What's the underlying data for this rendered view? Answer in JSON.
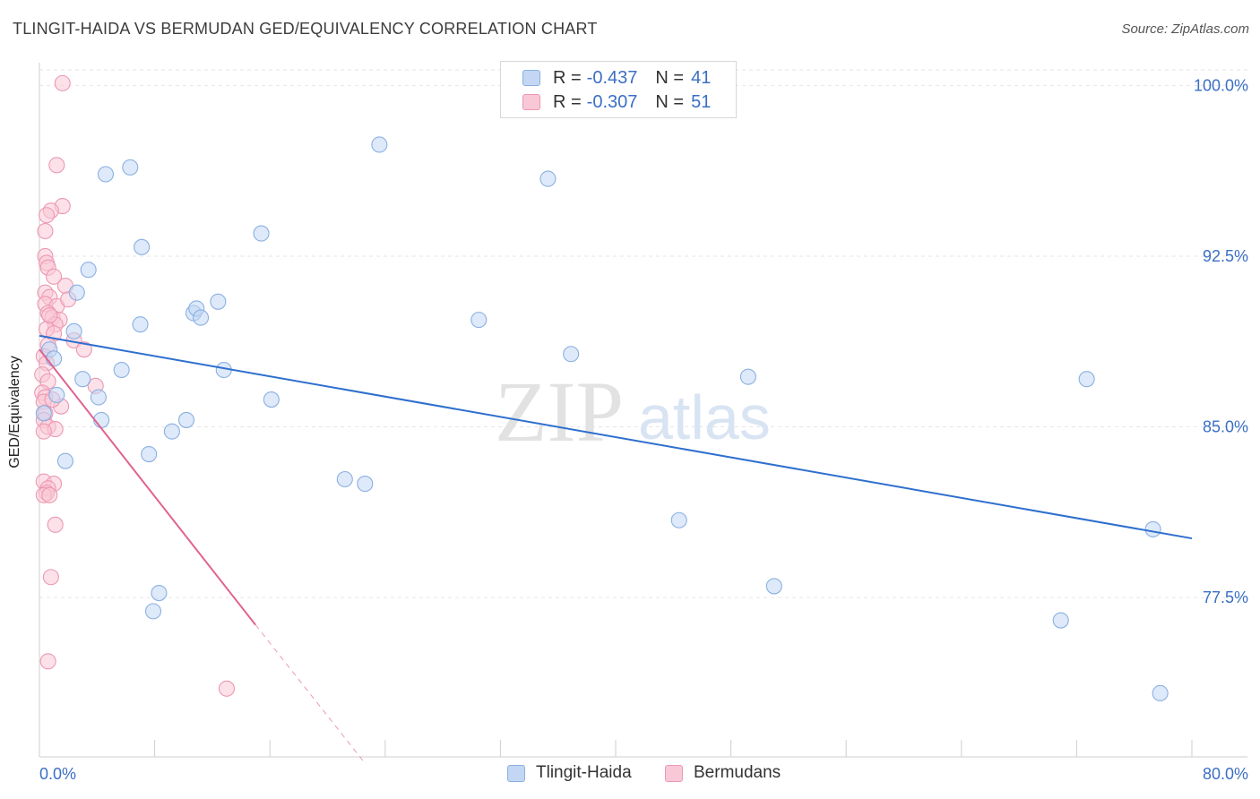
{
  "title": "TLINGIT-HAIDA VS BERMUDAN GED/EQUIVALENCY CORRELATION CHART",
  "source": "Source: ZipAtlas.com",
  "colors": {
    "blue_fill": "#c3d7f4",
    "blue_stroke": "#8ab0e2",
    "blue_line": "#2e6fce",
    "pink_fill": "#f9c8d6",
    "pink_stroke": "#ec98b4",
    "pink_line": "#e0638f",
    "axis_text": "#3a6fc4",
    "grid": "#e6e6e6"
  },
  "legend": {
    "rows": [
      {
        "r_label": "R =",
        "r_value": "-0.437",
        "n_label": "N =",
        "n_value": "41"
      },
      {
        "r_label": "R =",
        "r_value": "-0.307",
        "n_label": "N =",
        "n_value": "51"
      }
    ]
  },
  "bottom_legend": [
    "Tlingit-Haida",
    "Bermudans"
  ],
  "watermark": {
    "zip": "ZIP",
    "atlas": "atlas"
  },
  "chart_data": {
    "type": "scatter",
    "title": "TLINGIT-HAIDA VS BERMUDAN GED/EQUIVALENCY CORRELATION CHART",
    "xlabel": "",
    "ylabel": "GED/Equivalency",
    "xlim": [
      0,
      80
    ],
    "ylim": [
      70.5,
      101.0
    ],
    "x_tick_labels": [
      "0.0%",
      "80.0%"
    ],
    "y_ticks": [
      77.5,
      85.0,
      92.5,
      100.0
    ],
    "y_tick_labels": [
      "77.5%",
      "85.0%",
      "92.5%",
      "100.0%"
    ],
    "grid": true,
    "series": [
      {
        "name": "Tlingit-Haida",
        "points": [
          [
            0.3,
            85.6
          ],
          [
            0.7,
            88.4
          ],
          [
            1.0,
            88.0
          ],
          [
            1.2,
            86.4
          ],
          [
            1.8,
            83.5
          ],
          [
            2.4,
            89.2
          ],
          [
            2.6,
            90.9
          ],
          [
            3.0,
            87.1
          ],
          [
            3.4,
            91.9
          ],
          [
            4.1,
            86.3
          ],
          [
            4.3,
            85.3
          ],
          [
            4.6,
            96.1
          ],
          [
            5.7,
            87.5
          ],
          [
            6.3,
            96.4
          ],
          [
            7.0,
            89.5
          ],
          [
            7.1,
            92.9
          ],
          [
            7.6,
            83.8
          ],
          [
            7.9,
            76.9
          ],
          [
            8.3,
            77.7
          ],
          [
            9.2,
            84.8
          ],
          [
            10.2,
            85.3
          ],
          [
            10.7,
            90.0
          ],
          [
            10.9,
            90.2
          ],
          [
            11.2,
            89.8
          ],
          [
            12.4,
            90.5
          ],
          [
            12.8,
            87.5
          ],
          [
            15.4,
            93.5
          ],
          [
            16.1,
            86.2
          ],
          [
            21.2,
            82.7
          ],
          [
            22.6,
            82.5
          ],
          [
            23.6,
            97.4
          ],
          [
            30.5,
            89.7
          ],
          [
            35.3,
            95.9
          ],
          [
            36.9,
            88.2
          ],
          [
            44.4,
            80.9
          ],
          [
            49.2,
            87.2
          ],
          [
            51.0,
            78.0
          ],
          [
            70.9,
            76.5
          ],
          [
            72.7,
            87.1
          ],
          [
            77.8,
            73.3
          ],
          [
            77.3,
            80.5
          ]
        ],
        "trendline": [
          [
            0.0,
            89.0
          ],
          [
            80.0,
            80.1
          ]
        ]
      },
      {
        "name": "Bermudans",
        "points": [
          [
            1.6,
            100.1
          ],
          [
            1.2,
            96.5
          ],
          [
            1.6,
            94.7
          ],
          [
            0.8,
            94.5
          ],
          [
            0.5,
            94.3
          ],
          [
            0.4,
            93.6
          ],
          [
            0.4,
            92.5
          ],
          [
            0.5,
            92.2
          ],
          [
            0.6,
            92.0
          ],
          [
            1.0,
            91.6
          ],
          [
            1.8,
            91.2
          ],
          [
            0.4,
            90.9
          ],
          [
            0.7,
            90.7
          ],
          [
            0.4,
            90.4
          ],
          [
            1.2,
            90.3
          ],
          [
            0.6,
            90.0
          ],
          [
            0.9,
            89.8
          ],
          [
            1.4,
            89.7
          ],
          [
            1.1,
            89.5
          ],
          [
            0.5,
            89.3
          ],
          [
            1.0,
            89.1
          ],
          [
            2.4,
            88.8
          ],
          [
            0.6,
            88.6
          ],
          [
            3.1,
            88.4
          ],
          [
            0.3,
            88.1
          ],
          [
            0.5,
            87.8
          ],
          [
            0.2,
            87.3
          ],
          [
            0.6,
            87.0
          ],
          [
            3.9,
            86.8
          ],
          [
            0.2,
            86.5
          ],
          [
            0.4,
            86.3
          ],
          [
            0.3,
            86.1
          ],
          [
            1.5,
            85.9
          ],
          [
            0.4,
            85.6
          ],
          [
            0.3,
            85.3
          ],
          [
            0.6,
            85.0
          ],
          [
            1.1,
            84.9
          ],
          [
            0.3,
            84.8
          ],
          [
            0.3,
            82.6
          ],
          [
            1.0,
            82.5
          ],
          [
            0.6,
            82.3
          ],
          [
            0.5,
            82.1
          ],
          [
            0.3,
            82.0
          ],
          [
            0.7,
            82.0
          ],
          [
            1.1,
            80.7
          ],
          [
            0.8,
            78.4
          ],
          [
            0.6,
            74.7
          ],
          [
            13.0,
            73.5
          ],
          [
            0.9,
            86.2
          ],
          [
            0.7,
            89.9
          ],
          [
            2.0,
            90.6
          ]
        ],
        "trendline": [
          [
            0.0,
            88.4
          ],
          [
            15.0,
            76.3
          ]
        ],
        "trendline_dashed": [
          [
            15.0,
            76.3
          ],
          [
            22.5,
            70.3
          ]
        ]
      }
    ]
  }
}
